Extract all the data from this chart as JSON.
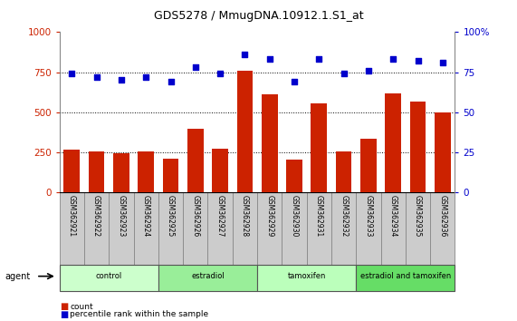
{
  "title": "GDS5278 / MmugDNA.10912.1.S1_at",
  "samples": [
    "GSM362921",
    "GSM362922",
    "GSM362923",
    "GSM362924",
    "GSM362925",
    "GSM362926",
    "GSM362927",
    "GSM362928",
    "GSM362929",
    "GSM362930",
    "GSM362931",
    "GSM362932",
    "GSM362933",
    "GSM362934",
    "GSM362935",
    "GSM362936"
  ],
  "counts": [
    265,
    255,
    245,
    255,
    210,
    395,
    275,
    760,
    615,
    205,
    555,
    255,
    335,
    620,
    565,
    500
  ],
  "percentile": [
    74,
    72,
    70,
    72,
    69,
    78,
    74,
    86,
    83,
    69,
    83,
    74,
    76,
    83,
    82,
    81
  ],
  "groups": [
    {
      "label": "control",
      "start": 0,
      "end": 4,
      "color": "#ccffcc"
    },
    {
      "label": "estradiol",
      "start": 4,
      "end": 8,
      "color": "#99ee99"
    },
    {
      "label": "tamoxifen",
      "start": 8,
      "end": 12,
      "color": "#bbffbb"
    },
    {
      "label": "estradiol and tamoxifen",
      "start": 12,
      "end": 16,
      "color": "#66dd66"
    }
  ],
  "bar_color": "#cc2200",
  "dot_color": "#0000cc",
  "left_ylim": [
    0,
    1000
  ],
  "right_ylim": [
    0,
    100
  ],
  "left_yticks": [
    0,
    250,
    500,
    750,
    1000
  ],
  "right_yticks": [
    0,
    25,
    50,
    75,
    100
  ],
  "right_yticklabels": [
    "0",
    "25",
    "50",
    "75",
    "100%"
  ],
  "grid_values": [
    250,
    500,
    750
  ],
  "background_color": "#ffffff",
  "plot_bg": "#ffffff",
  "bar_color_label": "count",
  "dot_color_label": "percentile rank within the sample",
  "agent_label": "agent",
  "sample_box_color": "#cccccc",
  "sample_box_edge": "#888888"
}
